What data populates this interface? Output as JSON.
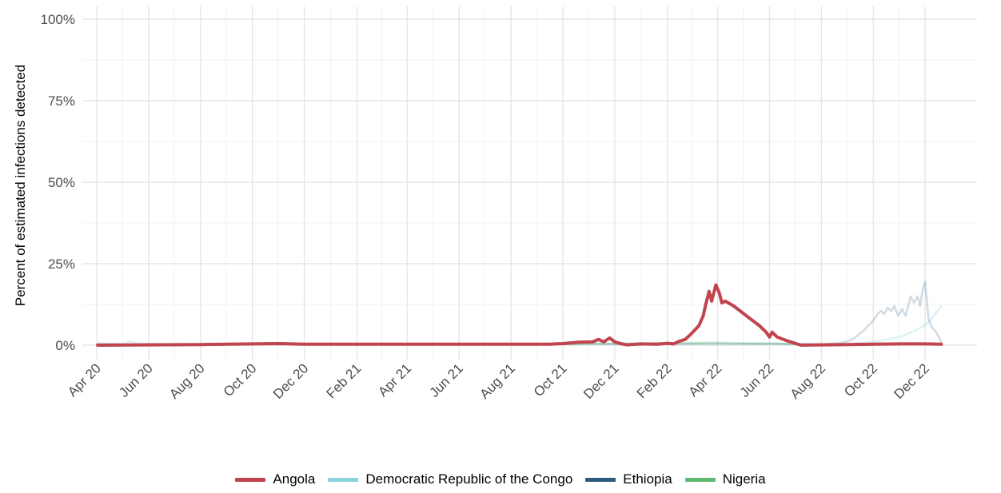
{
  "chart_data": {
    "type": "line",
    "ylabel": "Percent of estimated infections detected",
    "xlabel": "",
    "ylim": [
      0,
      100
    ],
    "xlim": [
      "2020-03-15",
      "2023-01-31"
    ],
    "grid": true,
    "legend_position": "bottom",
    "y_ticks": [
      {
        "value": 0,
        "label": "0%"
      },
      {
        "value": 25,
        "label": "25%"
      },
      {
        "value": 50,
        "label": "50%"
      },
      {
        "value": 75,
        "label": "75%"
      },
      {
        "value": 100,
        "label": "100%"
      }
    ],
    "x_ticks": [
      {
        "value": "2020-04-01",
        "label": "Apr 20"
      },
      {
        "value": "2020-06-01",
        "label": "Jun 20"
      },
      {
        "value": "2020-08-01",
        "label": "Aug 20"
      },
      {
        "value": "2020-10-01",
        "label": "Oct 20"
      },
      {
        "value": "2020-12-01",
        "label": "Dec 20"
      },
      {
        "value": "2021-02-01",
        "label": "Feb 21"
      },
      {
        "value": "2021-04-01",
        "label": "Apr 21"
      },
      {
        "value": "2021-06-01",
        "label": "Jun 21"
      },
      {
        "value": "2021-08-01",
        "label": "Aug 21"
      },
      {
        "value": "2021-10-01",
        "label": "Oct 21"
      },
      {
        "value": "2021-12-01",
        "label": "Dec 21"
      },
      {
        "value": "2022-02-01",
        "label": "Feb 22"
      },
      {
        "value": "2022-04-01",
        "label": "Apr 22"
      },
      {
        "value": "2022-06-01",
        "label": "Jun 22"
      },
      {
        "value": "2022-08-01",
        "label": "Aug 22"
      },
      {
        "value": "2022-10-01",
        "label": "Oct 22"
      },
      {
        "value": "2022-12-01",
        "label": "Dec 22"
      }
    ],
    "series": [
      {
        "name": "Democratic Republic of the Congo",
        "color": "#8dd3de",
        "opacity": 0.3,
        "width": 2.5,
        "points": [
          [
            "2020-04-02",
            0.6
          ],
          [
            "2020-04-20",
            0.5
          ],
          [
            "2020-05-01",
            0.3
          ],
          [
            "2020-05-10",
            1.2
          ],
          [
            "2020-05-20",
            0.5
          ],
          [
            "2020-06-15",
            0.4
          ],
          [
            "2020-08-01",
            0.3
          ],
          [
            "2020-10-01",
            0.3
          ],
          [
            "2021-01-01",
            0.3
          ],
          [
            "2021-06-01",
            0.3
          ],
          [
            "2021-10-01",
            0.3
          ],
          [
            "2022-01-01",
            0.3
          ],
          [
            "2022-04-01",
            0.5
          ],
          [
            "2022-06-15",
            0.4
          ],
          [
            "2022-08-01",
            0.3
          ],
          [
            "2022-09-01",
            0.4
          ],
          [
            "2022-10-01",
            1.0
          ],
          [
            "2022-11-01",
            2.5
          ],
          [
            "2022-11-20",
            4.5
          ],
          [
            "2022-12-05",
            7.0
          ],
          [
            "2022-12-20",
            12.0
          ]
        ]
      },
      {
        "name": "Ethiopia",
        "color": "#2b5c7e",
        "opacity": 0.22,
        "width": 2.5,
        "points": [
          [
            "2020-04-02",
            0.3
          ],
          [
            "2020-06-01",
            0.3
          ],
          [
            "2020-12-01",
            0.3
          ],
          [
            "2021-06-01",
            0.3
          ],
          [
            "2021-10-01",
            0.3
          ],
          [
            "2022-01-01",
            0.4
          ],
          [
            "2022-06-01",
            0.4
          ],
          [
            "2022-08-01",
            0.3
          ],
          [
            "2022-08-20",
            0.6
          ],
          [
            "2022-09-01",
            1.2
          ],
          [
            "2022-09-08",
            2.0
          ],
          [
            "2022-09-15",
            3.5
          ],
          [
            "2022-09-20",
            4.5
          ],
          [
            "2022-09-25",
            6.0
          ],
          [
            "2022-10-01",
            7.5
          ],
          [
            "2022-10-06",
            9.5
          ],
          [
            "2022-10-10",
            10.5
          ],
          [
            "2022-10-14",
            9.5
          ],
          [
            "2022-10-18",
            11.5
          ],
          [
            "2022-10-22",
            10.5
          ],
          [
            "2022-10-26",
            12.0
          ],
          [
            "2022-10-30",
            9.0
          ],
          [
            "2022-11-04",
            11.0
          ],
          [
            "2022-11-08",
            9.0
          ],
          [
            "2022-11-14",
            15.0
          ],
          [
            "2022-11-18",
            13.0
          ],
          [
            "2022-11-22",
            15.0
          ],
          [
            "2022-11-25",
            12.0
          ],
          [
            "2022-11-29",
            18.0
          ],
          [
            "2022-12-01",
            19.5
          ],
          [
            "2022-12-03",
            14.0
          ],
          [
            "2022-12-05",
            8.0
          ],
          [
            "2022-12-09",
            5.5
          ],
          [
            "2022-12-14",
            4.0
          ],
          [
            "2022-12-20",
            1.0
          ]
        ]
      },
      {
        "name": "Nigeria",
        "color": "#5fb86f",
        "opacity": 0.32,
        "width": 2.5,
        "points": [
          [
            "2020-04-02",
            0.2
          ],
          [
            "2020-08-01",
            0.2
          ],
          [
            "2020-12-01",
            0.3
          ],
          [
            "2021-06-01",
            0.3
          ],
          [
            "2021-10-01",
            0.4
          ],
          [
            "2021-11-01",
            0.6
          ],
          [
            "2021-12-01",
            0.5
          ],
          [
            "2022-01-01",
            0.6
          ],
          [
            "2022-03-01",
            0.7
          ],
          [
            "2022-04-01",
            0.8
          ],
          [
            "2022-05-01",
            0.6
          ],
          [
            "2022-06-01",
            0.6
          ],
          [
            "2022-07-01",
            0.3
          ],
          [
            "2022-08-01",
            0.2
          ],
          [
            "2022-10-01",
            0.3
          ],
          [
            "2022-12-01",
            0.4
          ],
          [
            "2022-12-20",
            0.4
          ]
        ]
      },
      {
        "name": "Angola",
        "color": "#c1444e",
        "opacity": 1,
        "width": 4,
        "points": [
          [
            "2020-04-02",
            0.0
          ],
          [
            "2020-06-01",
            0.1
          ],
          [
            "2020-08-01",
            0.2
          ],
          [
            "2020-10-01",
            0.4
          ],
          [
            "2020-11-01",
            0.5
          ],
          [
            "2020-12-01",
            0.3
          ],
          [
            "2021-02-01",
            0.3
          ],
          [
            "2021-06-01",
            0.3
          ],
          [
            "2021-09-15",
            0.3
          ],
          [
            "2021-10-01",
            0.5
          ],
          [
            "2021-10-20",
            0.9
          ],
          [
            "2021-11-05",
            1.0
          ],
          [
            "2021-11-12",
            1.8
          ],
          [
            "2021-11-18",
            1.0
          ],
          [
            "2021-11-25",
            2.2
          ],
          [
            "2021-12-01",
            1.0
          ],
          [
            "2021-12-08",
            0.5
          ],
          [
            "2021-12-15",
            0.1
          ],
          [
            "2022-01-01",
            0.4
          ],
          [
            "2022-01-20",
            0.3
          ],
          [
            "2022-02-01",
            0.6
          ],
          [
            "2022-02-08",
            0.4
          ],
          [
            "2022-02-15",
            1.2
          ],
          [
            "2022-02-22",
            1.8
          ],
          [
            "2022-03-01",
            3.5
          ],
          [
            "2022-03-10",
            6.0
          ],
          [
            "2022-03-15",
            9.0
          ],
          [
            "2022-03-18",
            12.5
          ],
          [
            "2022-03-22",
            16.5
          ],
          [
            "2022-03-25",
            13.5
          ],
          [
            "2022-03-30",
            18.5
          ],
          [
            "2022-04-03",
            16.0
          ],
          [
            "2022-04-06",
            13.0
          ],
          [
            "2022-04-10",
            13.5
          ],
          [
            "2022-04-20",
            12.0
          ],
          [
            "2022-05-05",
            9.0
          ],
          [
            "2022-05-20",
            6.0
          ],
          [
            "2022-05-28",
            4.0
          ],
          [
            "2022-06-01",
            2.5
          ],
          [
            "2022-06-04",
            4.0
          ],
          [
            "2022-06-10",
            2.5
          ],
          [
            "2022-06-20",
            1.5
          ],
          [
            "2022-07-01",
            0.6
          ],
          [
            "2022-07-08",
            0.0
          ],
          [
            "2022-08-01",
            0.1
          ],
          [
            "2022-09-01",
            0.2
          ],
          [
            "2022-10-01",
            0.3
          ],
          [
            "2022-11-01",
            0.4
          ],
          [
            "2022-12-01",
            0.4
          ],
          [
            "2022-12-20",
            0.3
          ]
        ]
      }
    ]
  },
  "legend": {
    "items": [
      {
        "label": "Angola",
        "color": "#c1444e"
      },
      {
        "label": "Democratic Republic of the Congo",
        "color": "#8dd3de"
      },
      {
        "label": "Ethiopia",
        "color": "#2b5c7e"
      },
      {
        "label": "Nigeria",
        "color": "#5fb86f"
      }
    ]
  }
}
